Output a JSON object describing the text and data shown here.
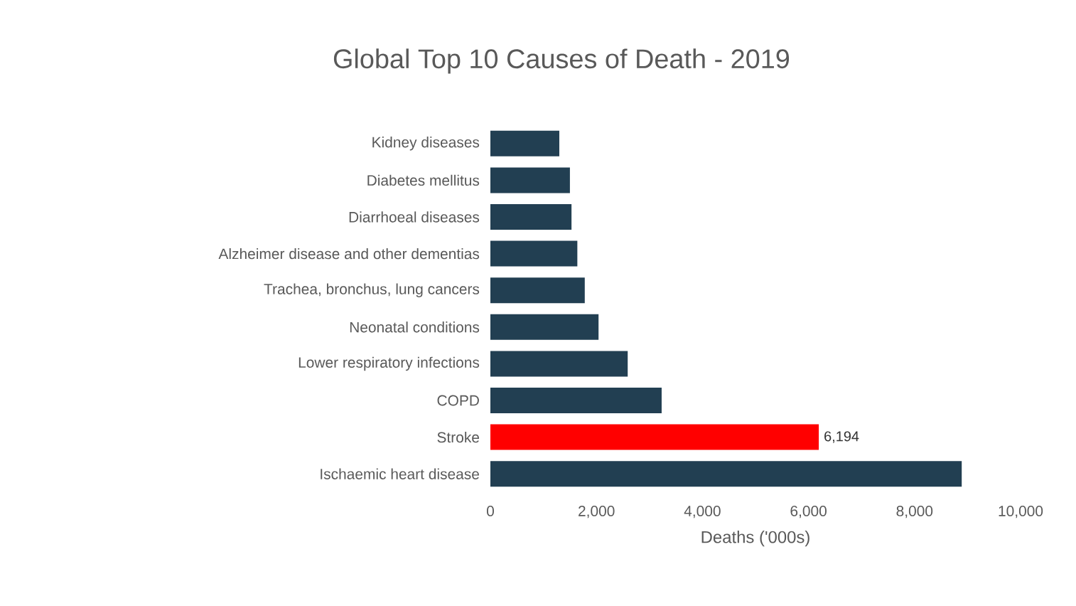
{
  "chart_data": {
    "type": "bar",
    "orientation": "horizontal",
    "title": "Global Top 10 Causes of Death - 2019",
    "xlabel": "Deaths ('000s)",
    "categories": [
      "Kidney diseases",
      "Diabetes mellitus",
      "Diarrhoeal diseases",
      "Alzheimer disease and other dementias",
      "Trachea, bronchus, lung cancers",
      "Neonatal conditions",
      "Lower respiratory infections",
      "COPD",
      "Stroke",
      "Ischaemic heart disease"
    ],
    "values": [
      1300,
      1500,
      1530,
      1640,
      1780,
      2040,
      2590,
      3230,
      6194,
      8890
    ],
    "colors": [
      "#223f52",
      "#223f52",
      "#223f52",
      "#223f52",
      "#223f52",
      "#223f52",
      "#223f52",
      "#223f52",
      "#ff0000",
      "#223f52"
    ],
    "value_labels": [
      null,
      null,
      null,
      null,
      null,
      null,
      null,
      null,
      "6,194",
      null
    ],
    "xlim": [
      0,
      10000
    ],
    "xticks": [
      {
        "value": 0,
        "label": "0"
      },
      {
        "value": 2000,
        "label": "2,000"
      },
      {
        "value": 4000,
        "label": "4,000"
      },
      {
        "value": 6000,
        "label": "6,000"
      },
      {
        "value": 8000,
        "label": "8,000"
      },
      {
        "value": 10000,
        "label": "10,000"
      }
    ]
  }
}
